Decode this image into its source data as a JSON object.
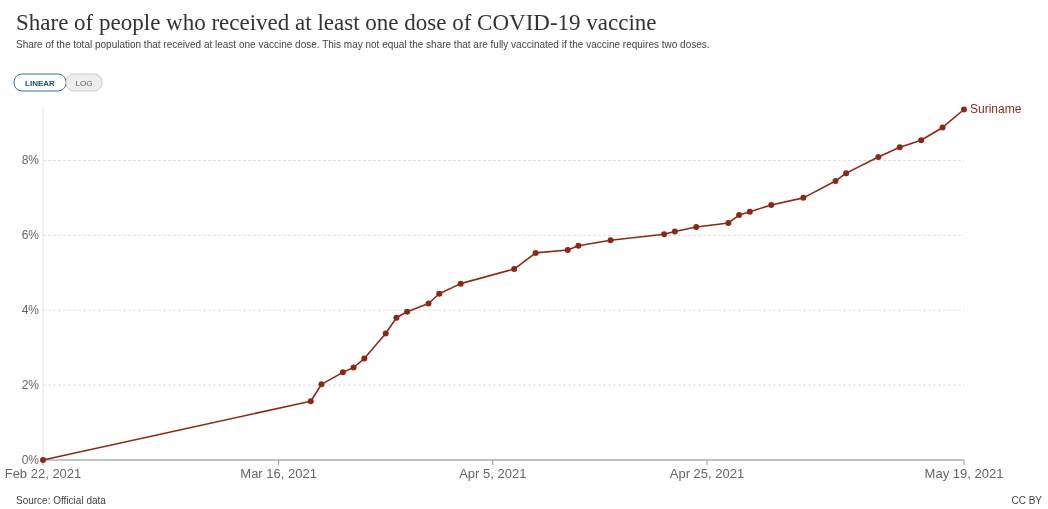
{
  "chart_data": {
    "type": "line",
    "title": "Share of people who received at least one dose of COVID-19 vaccine",
    "subtitle": "Share of the total population that received at least one vaccine dose. This may not equal the share that are fully vaccinated if the vaccine requires two doses.",
    "annotations": [
      "LINEAR",
      "LOG",
      "Source: Official data",
      "CC BY"
    ],
    "x": [
      "2021-02-22",
      "2021-03-19",
      "2021-03-20",
      "2021-03-22",
      "2021-03-23",
      "2021-03-24",
      "2021-03-26",
      "2021-03-27",
      "2021-03-28",
      "2021-03-30",
      "2021-03-31",
      "2021-04-02",
      "2021-04-07",
      "2021-04-09",
      "2021-04-12",
      "2021-04-13",
      "2021-04-16",
      "2021-04-21",
      "2021-04-22",
      "2021-04-24",
      "2021-04-27",
      "2021-04-28",
      "2021-04-29",
      "2021-05-01",
      "2021-05-04",
      "2021-05-07",
      "2021-05-08",
      "2021-05-11",
      "2021-05-13",
      "2021-05-15",
      "2021-05-17",
      "2021-05-19"
    ],
    "series": [
      {
        "name": "Suriname",
        "color": "#8b2a14",
        "values": [
          0,
          1.57,
          2.02,
          2.34,
          2.47,
          2.71,
          3.38,
          3.8,
          3.96,
          4.18,
          4.44,
          4.71,
          5.1,
          5.53,
          5.61,
          5.72,
          5.87,
          6.03,
          6.1,
          6.22,
          6.33,
          6.54,
          6.63,
          6.81,
          7.0,
          7.45,
          7.66,
          8.09,
          8.35,
          8.54,
          8.88,
          9.36
        ]
      }
    ],
    "xlim": [
      "2021-02-22",
      "2021-05-19"
    ],
    "xticks": [
      {
        "value": "2021-02-22",
        "label": "Feb 22, 2021"
      },
      {
        "value": "2021-03-16",
        "label": "Mar 16, 2021"
      },
      {
        "value": "2021-04-05",
        "label": "Apr 5, 2021"
      },
      {
        "value": "2021-04-25",
        "label": "Apr 25, 2021"
      },
      {
        "value": "2021-05-19",
        "label": "May 19, 2021"
      }
    ],
    "yticks": [
      {
        "value": 0,
        "label": "0%"
      },
      {
        "value": 2,
        "label": "2%"
      },
      {
        "value": 4,
        "label": "4%"
      },
      {
        "value": 6,
        "label": "6%"
      },
      {
        "value": 8,
        "label": "8%"
      }
    ],
    "ylim": [
      0,
      9.4
    ],
    "grid": "y",
    "marker": "circle",
    "line_style": "solid"
  }
}
